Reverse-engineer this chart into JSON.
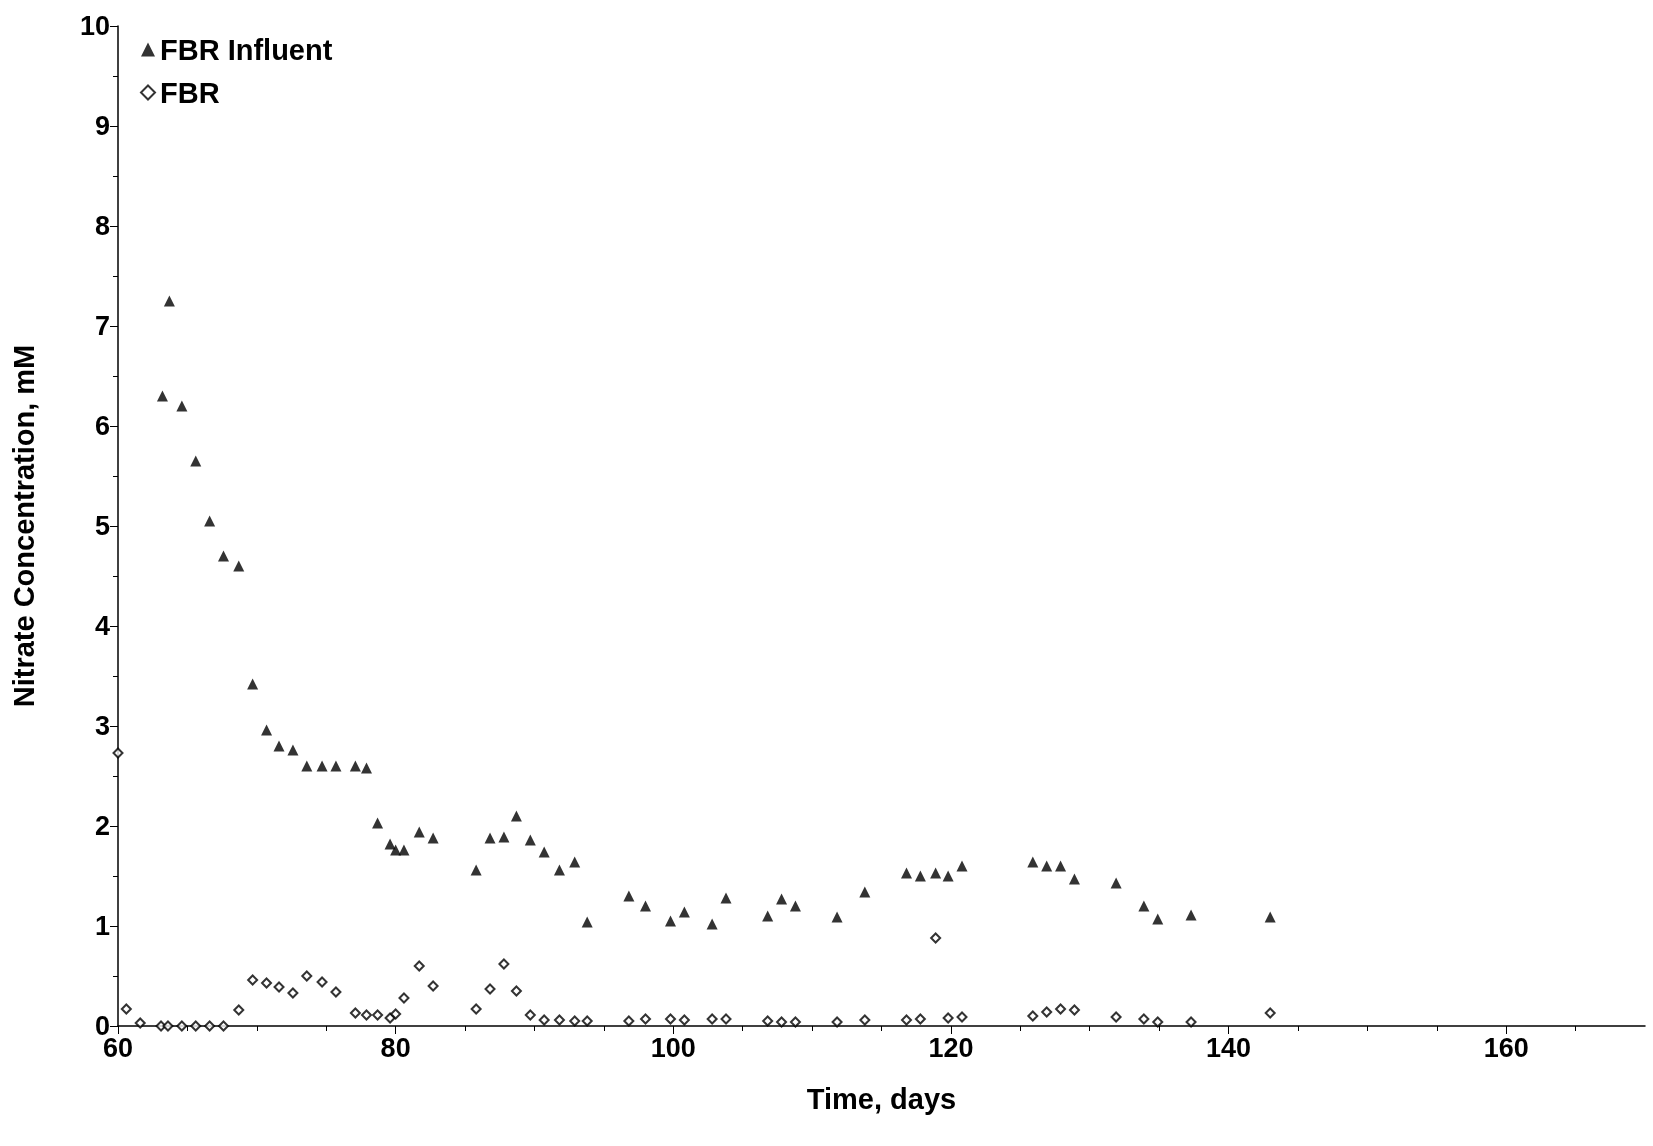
{
  "chart_data": {
    "type": "scatter",
    "xlabel": "Time, days",
    "ylabel": "Nitrate Concentration, mM",
    "xlim": [
      60,
      170
    ],
    "xticks": [
      60,
      80,
      100,
      120,
      140,
      160
    ],
    "ylim": [
      0,
      10
    ],
    "yticks": [
      0,
      1,
      2,
      3,
      4,
      5,
      6,
      7,
      8,
      9,
      10
    ],
    "grid": false,
    "legend": "top left",
    "series": [
      {
        "name": "FBR Influent",
        "color": "#000000",
        "marker": "triangle",
        "x": [
          63.2,
          63.7,
          64.6,
          65.6,
          66.6,
          67.6,
          68.7,
          69.7,
          70.7,
          71.6,
          72.6,
          73.6,
          74.7,
          75.7,
          77.1,
          77.9,
          78.7,
          79.6,
          80.0,
          80.6,
          81.7,
          82.7,
          85.8,
          86.8,
          87.8,
          88.7,
          89.7,
          90.7,
          91.8,
          92.9,
          93.8,
          96.8,
          98.0,
          99.8,
          100.8,
          102.8,
          103.8,
          106.8,
          107.8,
          108.8,
          111.8,
          113.8,
          116.8,
          117.8,
          118.9,
          119.8,
          120.8,
          125.9,
          126.9,
          127.9,
          128.9,
          131.9,
          133.9,
          134.9,
          137.3,
          143.0
        ],
        "values": [
          6.3,
          7.25,
          6.2,
          5.65,
          5.05,
          4.7,
          4.6,
          3.42,
          2.96,
          2.8,
          2.76,
          2.6,
          2.6,
          2.6,
          2.6,
          2.58,
          2.03,
          1.82,
          1.76,
          1.76,
          1.94,
          1.88,
          1.56,
          1.88,
          1.89,
          2.1,
          1.86,
          1.74,
          1.56,
          1.64,
          1.04,
          1.3,
          1.2,
          1.05,
          1.14,
          1.02,
          1.28,
          1.1,
          1.27,
          1.2,
          1.09,
          1.34,
          1.53,
          1.5,
          1.53,
          1.5,
          1.6,
          1.64,
          1.6,
          1.6,
          1.47,
          1.43,
          1.2,
          1.07,
          1.11,
          1.09
        ]
      },
      {
        "name": "FBR",
        "color": "#000000",
        "marker": "diamond",
        "x": [
          60.0,
          60.6,
          61.6,
          63.1,
          63.6,
          64.6,
          65.6,
          66.6,
          67.6,
          68.7,
          69.7,
          70.7,
          71.6,
          72.6,
          73.6,
          74.7,
          75.7,
          77.1,
          77.9,
          78.7,
          79.6,
          80.0,
          80.6,
          81.7,
          82.7,
          85.8,
          86.8,
          87.8,
          88.7,
          89.7,
          90.7,
          91.8,
          92.9,
          93.8,
          96.8,
          98.0,
          99.8,
          100.8,
          102.8,
          103.8,
          106.8,
          107.8,
          108.8,
          111.8,
          113.8,
          116.8,
          117.8,
          118.9,
          119.8,
          120.8,
          125.9,
          126.9,
          127.9,
          128.9,
          131.9,
          133.9,
          134.9,
          137.3,
          143.0
        ],
        "values": [
          2.73,
          0.17,
          0.03,
          0,
          0,
          0,
          0,
          0,
          0,
          0.16,
          0.46,
          0.43,
          0.39,
          0.33,
          0.5,
          0.44,
          0.34,
          0.13,
          0.11,
          0.11,
          0.08,
          0.12,
          0.28,
          0.6,
          0.4,
          0.17,
          0.37,
          0.62,
          0.35,
          0.11,
          0.06,
          0.06,
          0.05,
          0.05,
          0.05,
          0.07,
          0.07,
          0.06,
          0.07,
          0.07,
          0.05,
          0.04,
          0.04,
          0.04,
          0.06,
          0.06,
          0.07,
          0.88,
          0.08,
          0.09,
          0.1,
          0.14,
          0.17,
          0.16,
          0.09,
          0.07,
          0.04,
          0.04,
          0.13
        ]
      }
    ]
  }
}
